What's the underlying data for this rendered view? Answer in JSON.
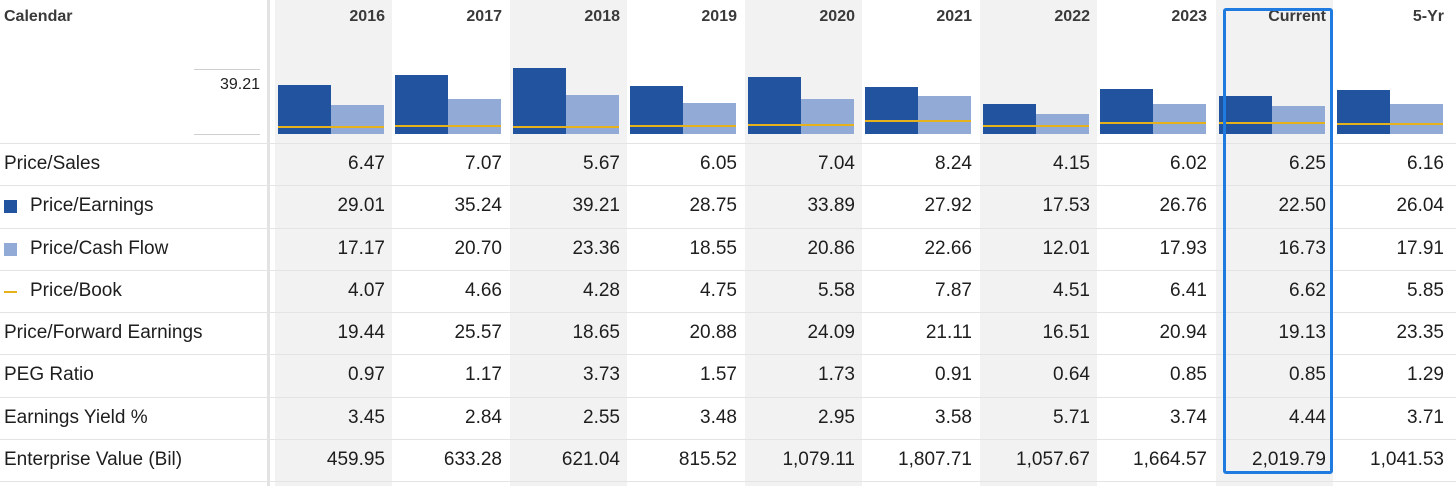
{
  "header": {
    "calendar_label": "Calendar",
    "periods": [
      "2016",
      "2017",
      "2018",
      "2019",
      "2020",
      "2021",
      "2022",
      "2023",
      "Current",
      "5-Yr"
    ],
    "selected_period": "Current"
  },
  "chart_data": {
    "type": "bar",
    "axis_label": "39.21",
    "categories": [
      "2016",
      "2017",
      "2018",
      "2019",
      "2020",
      "2021",
      "2022",
      "2023",
      "Current",
      "5-Yr"
    ],
    "series": [
      {
        "name": "Price/Earnings",
        "values": [
          29.01,
          35.24,
          39.21,
          28.75,
          33.89,
          27.92,
          17.53,
          26.76,
          22.5,
          26.04
        ]
      },
      {
        "name": "Price/Cash Flow",
        "values": [
          17.17,
          20.7,
          23.36,
          18.55,
          20.86,
          22.66,
          12.01,
          17.93,
          16.73,
          17.91
        ]
      },
      {
        "name": "Price/Book",
        "values": [
          4.07,
          4.66,
          4.28,
          4.75,
          5.58,
          7.87,
          4.51,
          6.41,
          6.62,
          5.85
        ]
      }
    ],
    "colors": {
      "pe": "#22539f",
      "pcf": "#92abd6",
      "pb": "#e5b21c"
    },
    "ymax": 39.21
  },
  "rows": [
    {
      "label": "Price/Sales",
      "values": [
        "6.47",
        "7.07",
        "5.67",
        "6.05",
        "7.04",
        "8.24",
        "4.15",
        "6.02",
        "6.25",
        "6.16"
      ]
    },
    {
      "label": "Price/Earnings",
      "legend": "pe",
      "values": [
        "29.01",
        "35.24",
        "39.21",
        "28.75",
        "33.89",
        "27.92",
        "17.53",
        "26.76",
        "22.50",
        "26.04"
      ]
    },
    {
      "label": "Price/Cash Flow",
      "legend": "pcf",
      "values": [
        "17.17",
        "20.70",
        "23.36",
        "18.55",
        "20.86",
        "22.66",
        "12.01",
        "17.93",
        "16.73",
        "17.91"
      ]
    },
    {
      "label": "Price/Book",
      "legend": "pb",
      "values": [
        "4.07",
        "4.66",
        "4.28",
        "4.75",
        "5.58",
        "7.87",
        "4.51",
        "6.41",
        "6.62",
        "5.85"
      ]
    },
    {
      "label": "Price/Forward Earnings",
      "values": [
        "19.44",
        "25.57",
        "18.65",
        "20.88",
        "24.09",
        "21.11",
        "16.51",
        "20.94",
        "19.13",
        "23.35"
      ]
    },
    {
      "label": "PEG Ratio",
      "values": [
        "0.97",
        "1.17",
        "3.73",
        "1.57",
        "1.73",
        "0.91",
        "0.64",
        "0.85",
        "0.85",
        "1.29"
      ]
    },
    {
      "label": "Earnings Yield %",
      "values": [
        "3.45",
        "2.84",
        "2.55",
        "3.48",
        "2.95",
        "3.58",
        "5.71",
        "3.74",
        "4.44",
        "3.71"
      ]
    },
    {
      "label": "Enterprise Value (Bil)",
      "values": [
        "459.95",
        "633.28",
        "621.04",
        "815.52",
        "1,079.11",
        "1,807.71",
        "1,057.67",
        "1,664.57",
        "2,019.79",
        "1,041.53"
      ]
    }
  ]
}
